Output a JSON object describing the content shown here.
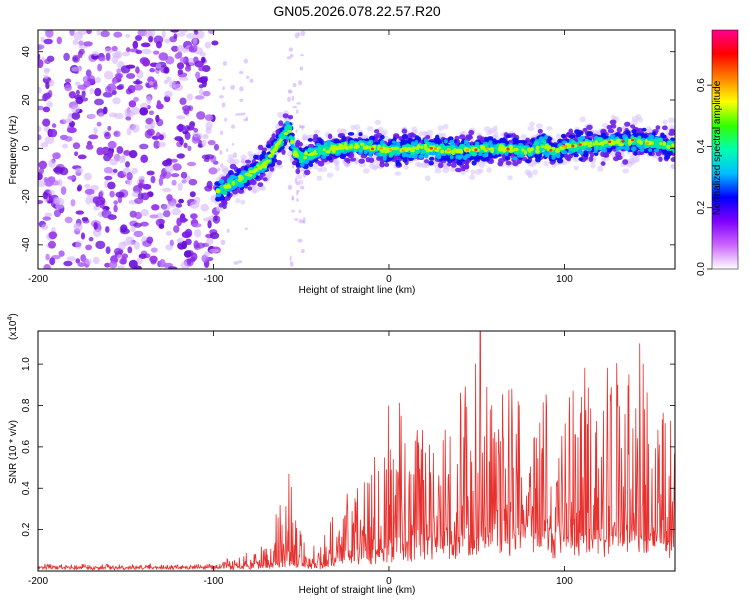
{
  "title": "GN05.2026.078.22.57.R20",
  "colors": {
    "snr_line": "#e8312e",
    "spectrogram_noise": "#8a2be2",
    "spectrogram_signal_core": "#00d070",
    "spectrogram_peak": "#ff2020",
    "axes": "#000000"
  },
  "chart_data": [
    {
      "type": "heatmap",
      "name": "spectrogram",
      "xlabel": "Height of straight line (km)",
      "ylabel": "Frequency (Hz)",
      "xlim": [
        -200,
        163
      ],
      "ylim": [
        -50,
        49
      ],
      "xticks": [
        -200,
        -100,
        0,
        100
      ],
      "xtick_labels": [
        "-200",
        "-100",
        "0",
        "100"
      ],
      "yticks": [
        -40,
        -20,
        0,
        20,
        40
      ],
      "ytick_labels": [
        "-40",
        "-20",
        "0",
        "20",
        "40"
      ],
      "noise_region_x": [
        -200,
        -98
      ],
      "noise_stripe_x": [
        -57,
        -48
      ],
      "signal_ridge": {
        "x": [
          -98,
          -90,
          -80,
          -70,
          -62,
          -57,
          -54,
          -50,
          -40,
          -20,
          0,
          20,
          40,
          60,
          80,
          90,
          95,
          100,
          120,
          140,
          163
        ],
        "frequency": [
          -18,
          -15,
          -11,
          -6,
          3,
          9,
          -2,
          -4,
          -1,
          1,
          -1,
          0,
          -1,
          0,
          -1,
          1,
          -2,
          1,
          2,
          3,
          1
        ]
      },
      "colorbar": {
        "label": "Normalized spectral amplitude",
        "range": [
          0.0,
          0.78
        ],
        "ticks": [
          0.0,
          0.2,
          0.4,
          0.6
        ],
        "tick_labels": [
          "0.0",
          "0.2",
          "0.4",
          "0.6"
        ],
        "colors": [
          "#ffffff",
          "#cc66ff",
          "#7f00ff",
          "#0000ff",
          "#00bfff",
          "#00ffb0",
          "#33ff00",
          "#ffff00",
          "#ff8000",
          "#ff0000",
          "#ff0090"
        ]
      }
    },
    {
      "type": "line",
      "name": "snr",
      "xlabel": "Height of straight line (km)",
      "ylabel": "SNR (10 * v/v)",
      "y_multiplier_label": "(x10",
      "y_multiplier_exponent": "4",
      "y_multiplier_close": ")",
      "xlim": [
        -200,
        163
      ],
      "ylim": [
        0,
        1.16
      ],
      "xticks": [
        -200,
        -100,
        0,
        100
      ],
      "xtick_labels": [
        "-200",
        "-100",
        "0",
        "100"
      ],
      "yticks": [
        0.2,
        0.4,
        0.6,
        0.8,
        1.0
      ],
      "ytick_labels": [
        "0.2",
        "0.4",
        "0.6",
        "0.8",
        "1.0"
      ],
      "envelope": {
        "x": [
          -200,
          -100,
          -85,
          -75,
          -68,
          -60,
          -55,
          -50,
          -45,
          -40,
          -35,
          -30,
          -20,
          -10,
          0,
          20,
          40,
          60,
          80,
          100,
          120,
          140,
          163
        ],
        "baseline": [
          0.02,
          0.02,
          0.02,
          0.03,
          0.03,
          0.04,
          0.04,
          0.03,
          0.02,
          0.02,
          0.04,
          0.05,
          0.08,
          0.1,
          0.12,
          0.15,
          0.18,
          0.2,
          0.2,
          0.2,
          0.2,
          0.2,
          0.2
        ],
        "peak": [
          0.04,
          0.04,
          0.1,
          0.12,
          0.16,
          0.45,
          0.53,
          0.25,
          0.15,
          0.1,
          0.3,
          0.35,
          0.5,
          0.65,
          0.85,
          0.95,
          1.0,
          1.1,
          0.95,
          1.05,
          0.95,
          1.1,
          0.8
        ]
      },
      "highlighted_peaks": [
        {
          "x": -57,
          "y": 0.47
        },
        {
          "x": 52,
          "y": 1.16
        },
        {
          "x": 143,
          "y": 1.1
        }
      ]
    }
  ]
}
